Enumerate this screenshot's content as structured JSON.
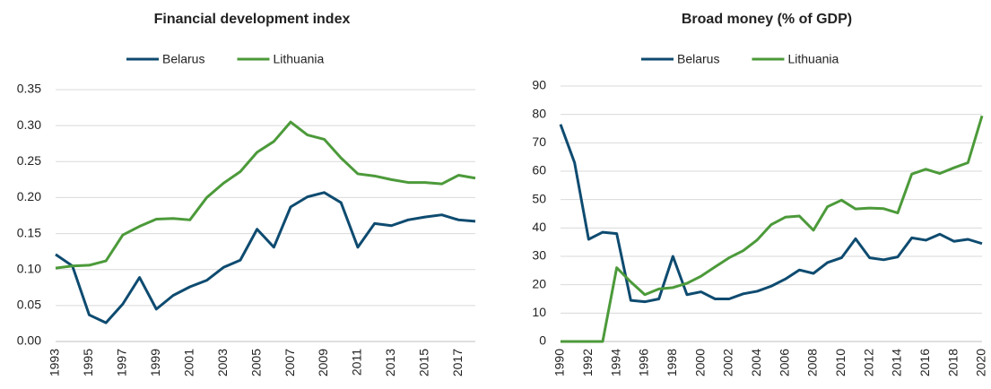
{
  "chart_data": [
    {
      "type": "line",
      "title": "Financial development index",
      "categories": [
        "1993",
        null,
        "1995",
        null,
        "1997",
        null,
        "1999",
        null,
        "2001",
        null,
        "2003",
        null,
        "2005",
        null,
        "2007",
        null,
        "2009",
        null,
        "2011",
        null,
        "2013",
        null,
        "2015",
        null,
        "2017",
        null
      ],
      "series": [
        {
          "name": "Belarus",
          "color": "#0e4b70",
          "values": [
            0.121,
            0.105,
            0.037,
            0.026,
            0.052,
            0.089,
            0.045,
            0.064,
            0.076,
            0.085,
            0.103,
            0.113,
            0.156,
            0.131,
            0.187,
            0.201,
            0.207,
            0.193,
            0.131,
            0.164,
            0.161,
            0.169,
            0.173,
            0.176,
            0.169,
            0.167
          ]
        },
        {
          "name": "Lithuania",
          "color": "#4c9a3a",
          "values": [
            0.102,
            0.105,
            0.106,
            0.112,
            0.148,
            0.16,
            0.17,
            0.171,
            0.169,
            0.2,
            0.22,
            0.236,
            0.263,
            0.278,
            0.305,
            0.287,
            0.281,
            0.255,
            0.233,
            0.23,
            0.225,
            0.221,
            0.221,
            0.219,
            0.231,
            0.227
          ]
        }
      ],
      "ylim": [
        0,
        0.35
      ],
      "yticks": [
        {
          "value": 0,
          "label": "0.00"
        },
        {
          "value": 0.05,
          "label": "0.05"
        },
        {
          "value": 0.1,
          "label": "0.10"
        },
        {
          "value": 0.15,
          "label": "0.15"
        },
        {
          "value": 0.2,
          "label": "0.20"
        },
        {
          "value": 0.25,
          "label": "0.25"
        },
        {
          "value": 0.3,
          "label": "0.30"
        },
        {
          "value": 0.35,
          "label": "0.35"
        }
      ],
      "grid": true,
      "legend": "top"
    },
    {
      "type": "line",
      "title": "Broad money (% of GDP)",
      "categories": [
        "1990",
        null,
        "1992",
        null,
        "1994",
        null,
        "1996",
        null,
        "1998",
        null,
        "2000",
        null,
        "2002",
        null,
        "2004",
        null,
        "2006",
        null,
        "2008",
        null,
        "2010",
        null,
        "2012",
        null,
        "2014",
        null,
        "2016",
        null,
        "2018",
        null,
        "2020"
      ],
      "series": [
        {
          "name": "Belarus",
          "color": "#0e4b70",
          "values": [
            76.5,
            63,
            36,
            38.5,
            38,
            14.5,
            14,
            15,
            30,
            16.5,
            17.5,
            15,
            15,
            16.8,
            17.7,
            19.5,
            22,
            25.2,
            24,
            27.8,
            29.5,
            36.2,
            29.5,
            28.8,
            29.8,
            36.5,
            35.7,
            37.8,
            35.3,
            36,
            34.5
          ]
        },
        {
          "name": "Lithuania",
          "color": "#4c9a3a",
          "values": [
            0,
            0,
            0,
            0,
            26,
            21,
            16.5,
            18.5,
            19,
            20.5,
            23,
            26.3,
            29.5,
            32,
            35.8,
            41.2,
            43.8,
            44.2,
            39.2,
            47.5,
            49.8,
            46.7,
            47,
            46.8,
            45.3,
            59,
            60.7,
            59.2,
            61.2,
            63,
            79.5
          ]
        }
      ],
      "ylim": [
        0,
        90
      ],
      "yticks": [
        0,
        10,
        20,
        30,
        40,
        50,
        60,
        70,
        80,
        90
      ],
      "grid": true,
      "legend": "top"
    }
  ]
}
